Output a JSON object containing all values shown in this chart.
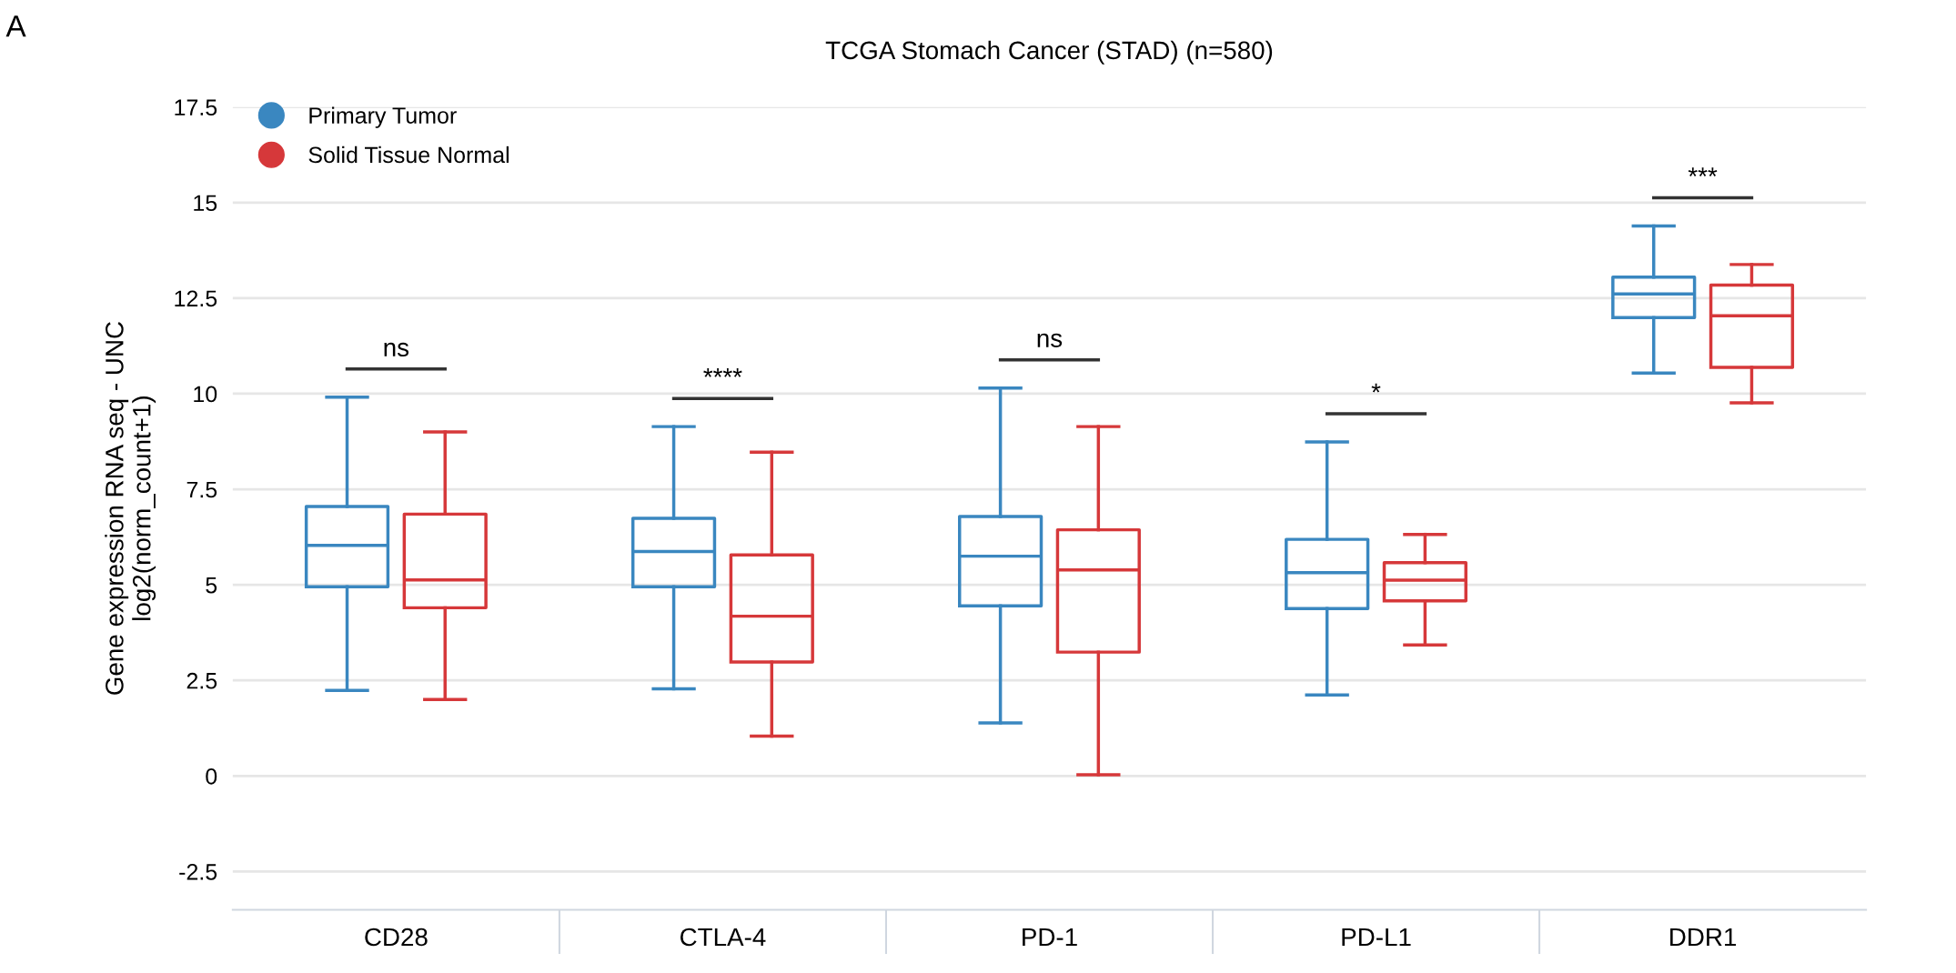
{
  "chart_data": {
    "type": "box",
    "title": "TCGA Stomach Cancer (STAD) (n=580)",
    "ylabel": "Gene expression RNA seq - UNC\nlog2(norm_count+1)",
    "categories": [
      "CD28",
      "CTLA-4",
      "PD-1",
      "PD-L1",
      "DDR1"
    ],
    "series": [
      {
        "name": "Primary Tumor",
        "color": "#3a87c0",
        "boxes": [
          {
            "low": 2.24,
            "q1": 4.95,
            "median": 6.03,
            "q3": 7.05,
            "high": 9.91
          },
          {
            "low": 2.28,
            "q1": 4.95,
            "median": 5.87,
            "q3": 6.74,
            "high": 9.14
          },
          {
            "low": 1.39,
            "q1": 4.45,
            "median": 5.75,
            "q3": 6.79,
            "high": 10.15
          },
          {
            "low": 2.12,
            "q1": 4.38,
            "median": 5.32,
            "q3": 6.19,
            "high": 8.74
          },
          {
            "low": 10.54,
            "q1": 11.99,
            "median": 12.61,
            "q3": 13.05,
            "high": 14.39
          }
        ]
      },
      {
        "name": "Solid Tissue Normal",
        "color": "#d6383a",
        "boxes": [
          {
            "low": 2.0,
            "q1": 4.4,
            "median": 5.13,
            "q3": 6.85,
            "high": 9.0
          },
          {
            "low": 1.04,
            "q1": 2.98,
            "median": 4.18,
            "q3": 5.78,
            "high": 8.47
          },
          {
            "low": 0.03,
            "q1": 3.24,
            "median": 5.39,
            "q3": 6.44,
            "high": 9.14
          },
          {
            "low": 3.43,
            "q1": 4.58,
            "median": 5.12,
            "q3": 5.58,
            "high": 6.32
          },
          {
            "low": 9.76,
            "q1": 10.69,
            "median": 12.04,
            "q3": 12.84,
            "high": 13.38
          }
        ]
      }
    ],
    "ylim": [
      -3.5,
      17.5
    ],
    "yticks": [
      -2.5,
      0,
      2.5,
      5,
      7.5,
      10,
      12.5,
      15,
      17.5
    ],
    "grid": "y",
    "legend": "top left",
    "annotations": [
      "A",
      "ns",
      "****",
      "ns",
      "*",
      "***"
    ]
  }
}
